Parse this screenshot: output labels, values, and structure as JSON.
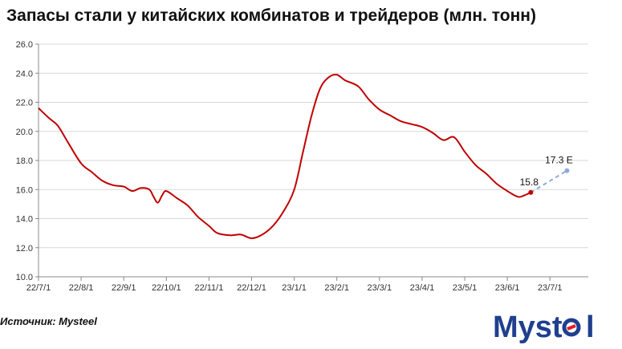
{
  "title": "Запасы стали у китайских комбинатов и трейдеров (млн. тонн)",
  "source": "Источник: Mysteel",
  "logo_text": "Mysteel",
  "colors": {
    "line": "#c00000",
    "forecast": "#8eaadb",
    "axis": "#888888",
    "grid": "#d9d9d9",
    "logo": "#1f3f8f",
    "logo_accent": "#e31b23"
  },
  "chart_data": {
    "type": "line",
    "title": "Запасы стали у китайских комбинатов и трейдеров (млн. тонн)",
    "xlabel": "",
    "ylabel": "",
    "ylim": [
      10.0,
      26.0
    ],
    "yticks": [
      "10.0",
      "12.0",
      "14.0",
      "16.0",
      "18.0",
      "20.0",
      "22.0",
      "24.0",
      "26.0"
    ],
    "xticks": [
      "22/7/1",
      "22/8/1",
      "22/9/1",
      "22/10/1",
      "22/11/1",
      "22/12/1",
      "23/1/1",
      "23/2/1",
      "23/3/1",
      "23/4/1",
      "23/5/1",
      "23/6/1",
      "23/7/1"
    ],
    "grid": true,
    "x_axis_months": 12.9,
    "series": [
      {
        "values": [
          [
            0,
            21.6
          ],
          [
            0.25,
            20.9
          ],
          [
            0.45,
            20.4
          ],
          [
            0.7,
            19.2
          ],
          [
            1.0,
            17.8
          ],
          [
            1.25,
            17.2
          ],
          [
            1.5,
            16.6
          ],
          [
            1.75,
            16.3
          ],
          [
            2.0,
            16.2
          ],
          [
            2.2,
            15.9
          ],
          [
            2.4,
            16.1
          ],
          [
            2.6,
            16.0
          ],
          [
            2.7,
            15.5
          ],
          [
            2.8,
            15.1
          ],
          [
            2.9,
            15.6
          ],
          [
            3.0,
            15.9
          ],
          [
            3.25,
            15.4
          ],
          [
            3.5,
            14.9
          ],
          [
            3.75,
            14.1
          ],
          [
            4.0,
            13.5
          ],
          [
            4.2,
            13.0
          ],
          [
            4.5,
            12.85
          ],
          [
            4.75,
            12.9
          ],
          [
            5.0,
            12.65
          ],
          [
            5.25,
            12.9
          ],
          [
            5.5,
            13.5
          ],
          [
            5.75,
            14.5
          ],
          [
            6.0,
            16.0
          ],
          [
            6.2,
            18.5
          ],
          [
            6.4,
            21.0
          ],
          [
            6.6,
            22.9
          ],
          [
            6.8,
            23.7
          ],
          [
            7.0,
            23.9
          ],
          [
            7.2,
            23.5
          ],
          [
            7.5,
            23.1
          ],
          [
            7.75,
            22.2
          ],
          [
            8.0,
            21.5
          ],
          [
            8.25,
            21.1
          ],
          [
            8.5,
            20.7
          ],
          [
            8.75,
            20.5
          ],
          [
            9.0,
            20.3
          ],
          [
            9.25,
            19.9
          ],
          [
            9.5,
            19.4
          ],
          [
            9.75,
            19.6
          ],
          [
            10.0,
            18.6
          ],
          [
            10.25,
            17.7
          ],
          [
            10.5,
            17.1
          ],
          [
            10.75,
            16.4
          ],
          [
            11.0,
            15.9
          ],
          [
            11.25,
            15.5
          ],
          [
            11.4,
            15.6
          ],
          [
            11.55,
            15.8
          ]
        ]
      },
      {
        "values": [
          [
            11.55,
            15.8
          ],
          [
            12.4,
            17.3
          ]
        ]
      }
    ],
    "annotations": [
      {
        "text": "15.8",
        "x": 11.55,
        "y": 15.8
      },
      {
        "text": "17.3 E",
        "x": 12.4,
        "y": 17.3
      }
    ]
  }
}
